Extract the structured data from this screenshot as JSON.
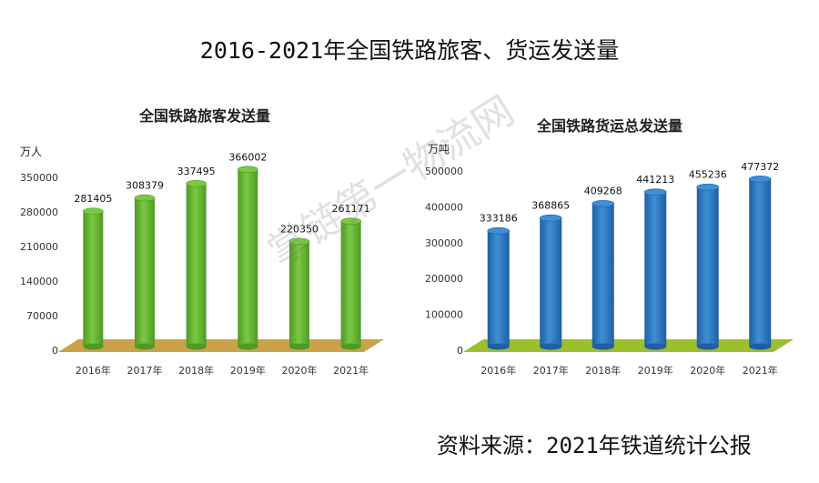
{
  "page_title": "2016-2021年全国铁路旅客、货运发送量",
  "source_text": "资料来源：2021年铁道统计公报",
  "watermark": "掌链第一物流网",
  "colors": {
    "passenger_bar": "#7ac943",
    "passenger_bar_dark": "#4f9a24",
    "freight_bar": "#3f8fd6",
    "freight_bar_dark": "#1f5fa3",
    "floor_left": "#c9a24a",
    "floor_right": "#9cbf2c"
  },
  "chart_data": [
    {
      "type": "bar",
      "title": "全国铁路旅客发送量",
      "unit": "万人",
      "categories": [
        "2016年",
        "2017年",
        "2018年",
        "2019年",
        "2020年",
        "2021年"
      ],
      "values": [
        281405,
        308379,
        337495,
        366002,
        220350,
        261171
      ],
      "data_labels": [
        "281405",
        "308379",
        "337495",
        "366002",
        "220350",
        "261171"
      ],
      "ylim": [
        0,
        350000
      ],
      "yticks": [
        "0",
        "70000",
        "140000",
        "210000",
        "280000",
        "350000"
      ],
      "grid": false,
      "legend": "none"
    },
    {
      "type": "bar",
      "title": "全国铁路货运总发送量",
      "unit": "万吨",
      "categories": [
        "2016年",
        "2017年",
        "2018年",
        "2019年",
        "2020年",
        "2021年"
      ],
      "values": [
        333186,
        368865,
        409268,
        441213,
        455236,
        477372
      ],
      "data_labels": [
        "333186",
        "368865",
        "409268",
        "441213",
        "455236",
        "477372"
      ],
      "ylim": [
        0,
        500000
      ],
      "yticks": [
        "0",
        "100000",
        "200000",
        "300000",
        "400000",
        "500000"
      ],
      "grid": false,
      "legend": "none"
    }
  ]
}
